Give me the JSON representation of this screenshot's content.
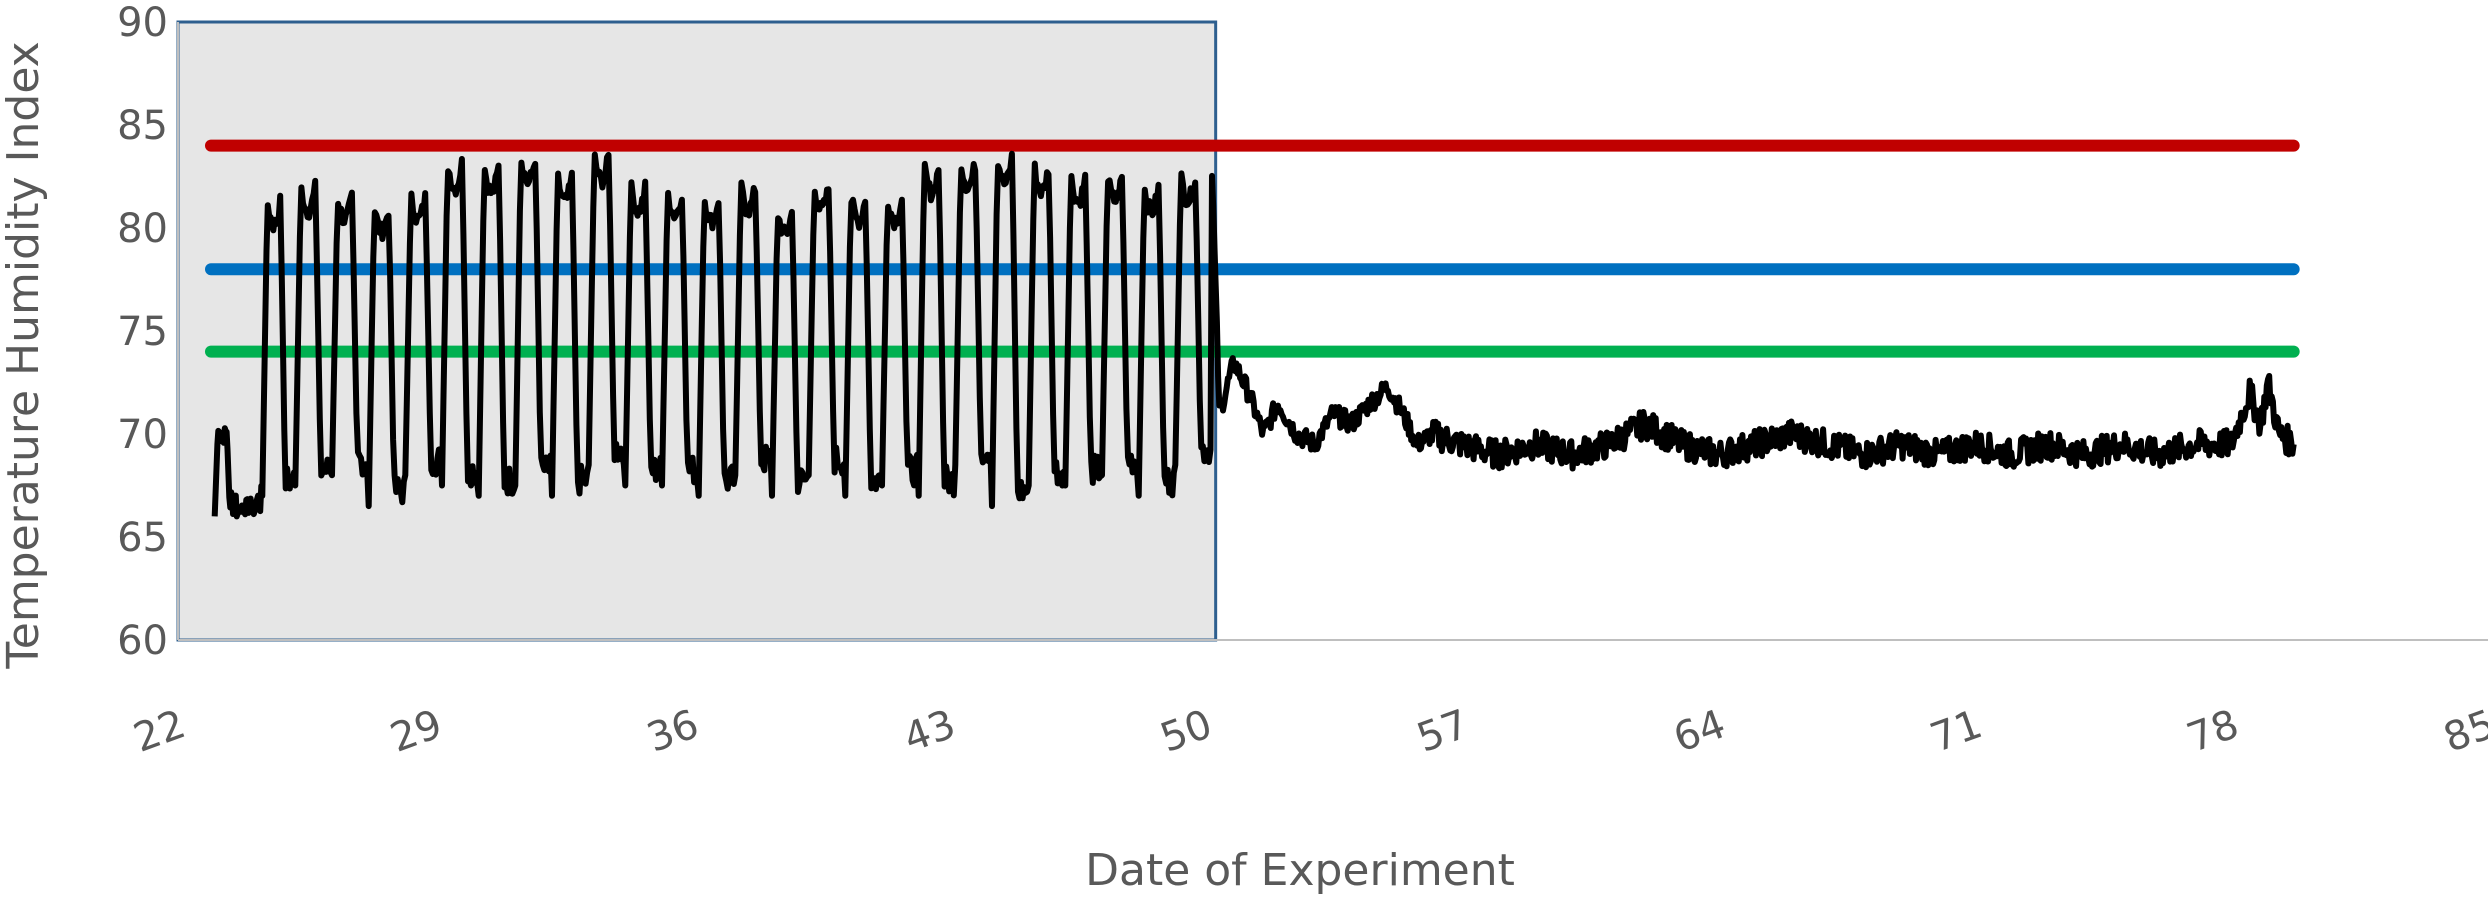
{
  "chart_data": {
    "type": "line",
    "title": "",
    "xlabel": "Date of Experiment",
    "ylabel": "Temperature Humidity Index",
    "xlim": [
      22,
      85
    ],
    "ylim": [
      60,
      90
    ],
    "x_ticks": [
      "22",
      "29",
      "36",
      "43",
      "50",
      "57",
      "64",
      "71",
      "78",
      "85"
    ],
    "y_ticks": [
      "60",
      "65",
      "70",
      "75",
      "80",
      "85",
      "90"
    ],
    "grid": false,
    "legend": "none",
    "shaded_region": {
      "x": [
        22,
        50.3
      ],
      "y": [
        60,
        90
      ],
      "fill": "#e6e6e6",
      "stroke": "#2e5f8f"
    },
    "thresholds": [
      {
        "y": 84,
        "color": "#c00000",
        "x": [
          22.9,
          79.7
        ]
      },
      {
        "y": 78,
        "color": "#0070c0",
        "x": [
          22.9,
          79.7
        ]
      },
      {
        "y": 74,
        "color": "#00b050",
        "x": [
          22.9,
          79.7
        ]
      }
    ],
    "series": [
      {
        "color": "#000000",
        "daily_cycle": {
          "start_day": 23.0,
          "day_starts": [
            23.0,
            23.6,
            24.3,
            25.2,
            26.2,
            27.2,
            28.2,
            29.2,
            30.2,
            31.2,
            32.2,
            33.2,
            34.2,
            35.2,
            36.2,
            37.2,
            38.2,
            39.2,
            40.2,
            41.2,
            42.2,
            43.2,
            44.2,
            45.2,
            46.2,
            47.2,
            48.2,
            49.2,
            50.2
          ],
          "peaks": [
            70.2,
            66.5,
            81.3,
            82.0,
            81.5,
            81.0,
            81.5,
            83.2,
            83.0,
            83.5,
            82.5,
            83.5,
            82.0,
            81.8,
            81.5,
            82.0,
            80.8,
            82.0,
            81.5,
            81.5,
            83.0,
            83.2,
            83.5,
            83.0,
            82.5,
            82.5,
            82.0,
            82.5,
            83.0
          ],
          "troughs": [
            66.0,
            66.0,
            67.0,
            67.5,
            68.0,
            66.5,
            68.0,
            67.5,
            67.0,
            67.5,
            67.0,
            68.5,
            67.5,
            67.5,
            67.0,
            68.0,
            67.0,
            68.0,
            67.0,
            67.5,
            67.0,
            68.5,
            66.5,
            67.5,
            67.5,
            68.0,
            67.0,
            68.5,
            69.0
          ]
        },
        "settled": [
          [
            50.2,
            83.0
          ],
          [
            50.4,
            71.0
          ],
          [
            50.8,
            73.5
          ],
          [
            51.2,
            72.0
          ],
          [
            51.6,
            70.0
          ],
          [
            52.0,
            71.5
          ],
          [
            52.5,
            70.0
          ],
          [
            53.0,
            69.5
          ],
          [
            53.5,
            71.0
          ],
          [
            54.0,
            70.5
          ],
          [
            54.5,
            71.5
          ],
          [
            55.0,
            72.3
          ],
          [
            55.4,
            71.0
          ],
          [
            55.8,
            69.5
          ],
          [
            56.2,
            70.0
          ],
          [
            57.0,
            69.5
          ],
          [
            58.0,
            69.0
          ],
          [
            59.0,
            69.5
          ],
          [
            60.0,
            69.0
          ],
          [
            61.0,
            69.5
          ],
          [
            62.0,
            70.5
          ],
          [
            63.0,
            69.5
          ],
          [
            64.0,
            69.0
          ],
          [
            65.0,
            69.5
          ],
          [
            66.0,
            70.0
          ],
          [
            67.0,
            69.5
          ],
          [
            68.0,
            69.0
          ],
          [
            69.0,
            69.5
          ],
          [
            70.0,
            69.0
          ],
          [
            71.0,
            69.5
          ],
          [
            72.0,
            69.0
          ],
          [
            73.0,
            69.5
          ],
          [
            74.0,
            69.0
          ],
          [
            75.0,
            69.5
          ],
          [
            76.0,
            69.0
          ],
          [
            77.0,
            69.5
          ],
          [
            78.0,
            69.5
          ],
          [
            78.5,
            72.0
          ],
          [
            78.8,
            70.5
          ],
          [
            79.0,
            72.5
          ],
          [
            79.3,
            70.0
          ],
          [
            79.7,
            69.5
          ]
        ]
      }
    ]
  }
}
